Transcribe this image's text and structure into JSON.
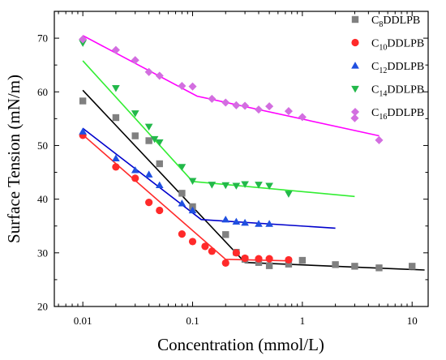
{
  "chart_data": {
    "type": "scatter",
    "title": "",
    "xlabel": "Concentration (mmol/L)",
    "ylabel": "Surface Tension (mN/m)",
    "xscale": "log",
    "xlim": [
      0.0055,
      14
    ],
    "ylim": [
      20,
      75
    ],
    "x_tick_labels": [
      "0.01",
      "0.1",
      "1",
      "10"
    ],
    "x_tick_values": [
      0.01,
      0.1,
      1,
      10
    ],
    "y_tick_labels": [
      "20",
      "30",
      "40",
      "50",
      "60",
      "70"
    ],
    "y_tick_values": [
      20,
      30,
      40,
      50,
      60,
      70
    ],
    "legend_position": "top-right",
    "series": [
      {
        "name": "C8DDLPB",
        "name_base": "C",
        "name_sub": "8",
        "name_rest": "DDLPB",
        "color": "#808080",
        "marker": "square",
        "x": [
          0.01,
          0.02,
          0.03,
          0.04,
          0.05,
          0.08,
          0.1,
          0.2,
          0.25,
          0.3,
          0.4,
          0.5,
          0.75,
          1,
          2,
          3,
          5,
          10
        ],
        "y": [
          58.3,
          55.2,
          51.8,
          50.9,
          46.6,
          41.1,
          38.6,
          33.4,
          30.1,
          28.8,
          28.2,
          27.6,
          27.9,
          28.6,
          27.8,
          27.5,
          27.2,
          27.5
        ],
        "fit": [
          [
            0.01,
            60.3
          ],
          [
            0.3,
            28.2
          ],
          [
            13,
            26.8
          ]
        ],
        "fit_color": "#000000"
      },
      {
        "name": "C10DDLPB",
        "name_base": "C",
        "name_sub": "10",
        "name_rest": "DDLPB",
        "color": "#ff2a2a",
        "marker": "circle",
        "x": [
          0.01,
          0.02,
          0.03,
          0.04,
          0.05,
          0.08,
          0.1,
          0.13,
          0.15,
          0.2,
          0.25,
          0.3,
          0.4,
          0.5,
          0.75
        ],
        "y": [
          51.9,
          46.0,
          43.9,
          39.4,
          37.9,
          33.5,
          32.1,
          31.2,
          30.3,
          28.1,
          30.0,
          29.0,
          28.9,
          28.9,
          28.7
        ],
        "fit": [
          [
            0.01,
            52.0
          ],
          [
            0.2,
            28.8
          ],
          [
            0.75,
            28.5
          ]
        ],
        "fit_color": "#ff2a2a"
      },
      {
        "name": "C12DDLPB",
        "name_base": "C",
        "name_sub": "12",
        "name_rest": "DDLPB",
        "color": "#1f4fe0",
        "marker": "triangle-up",
        "x": [
          0.01,
          0.02,
          0.03,
          0.04,
          0.05,
          0.08,
          0.1,
          0.2,
          0.25,
          0.3,
          0.4,
          0.5
        ],
        "y": [
          52.6,
          47.6,
          45.4,
          44.6,
          42.6,
          39.2,
          37.9,
          36.2,
          35.8,
          35.6,
          35.4,
          35.4
        ],
        "fit": [
          [
            0.01,
            53.2
          ],
          [
            0.12,
            36.2
          ],
          [
            2,
            34.6
          ]
        ],
        "fit_color": "#0000cc"
      },
      {
        "name": "C14DDLPB",
        "name_base": "C",
        "name_sub": "14",
        "name_rest": "DDLPB",
        "color": "#22b84a",
        "marker": "triangle-down",
        "x": [
          0.01,
          0.02,
          0.03,
          0.04,
          0.045,
          0.05,
          0.08,
          0.1,
          0.15,
          0.2,
          0.25,
          0.3,
          0.4,
          0.5,
          0.75
        ],
        "y": [
          69.1,
          60.7,
          56.0,
          53.5,
          51.2,
          50.6,
          46.0,
          43.4,
          42.7,
          42.6,
          42.5,
          42.8,
          42.7,
          42.5,
          41.0
        ],
        "fit": [
          [
            0.01,
            65.8
          ],
          [
            0.1,
            43.3
          ],
          [
            3,
            40.5
          ]
        ],
        "fit_color": "#33ee33"
      },
      {
        "name": "C16DDLPB",
        "name_base": "C",
        "name_sub": "16",
        "name_rest": "DDLPB",
        "color": "#d36ee0",
        "marker": "diamond",
        "x": [
          0.01,
          0.02,
          0.03,
          0.04,
          0.05,
          0.08,
          0.1,
          0.15,
          0.2,
          0.25,
          0.3,
          0.4,
          0.5,
          0.75,
          1,
          3,
          5
        ],
        "y": [
          69.8,
          67.8,
          65.9,
          63.7,
          63.0,
          61.1,
          61.0,
          58.7,
          58.0,
          57.5,
          57.4,
          56.7,
          57.3,
          56.4,
          55.3,
          55.1,
          51.0
        ],
        "fit": [
          [
            0.01,
            70.5
          ],
          [
            0.11,
            59.2
          ],
          [
            5,
            51.8
          ]
        ],
        "fit_color": "#ff00ff"
      }
    ]
  }
}
